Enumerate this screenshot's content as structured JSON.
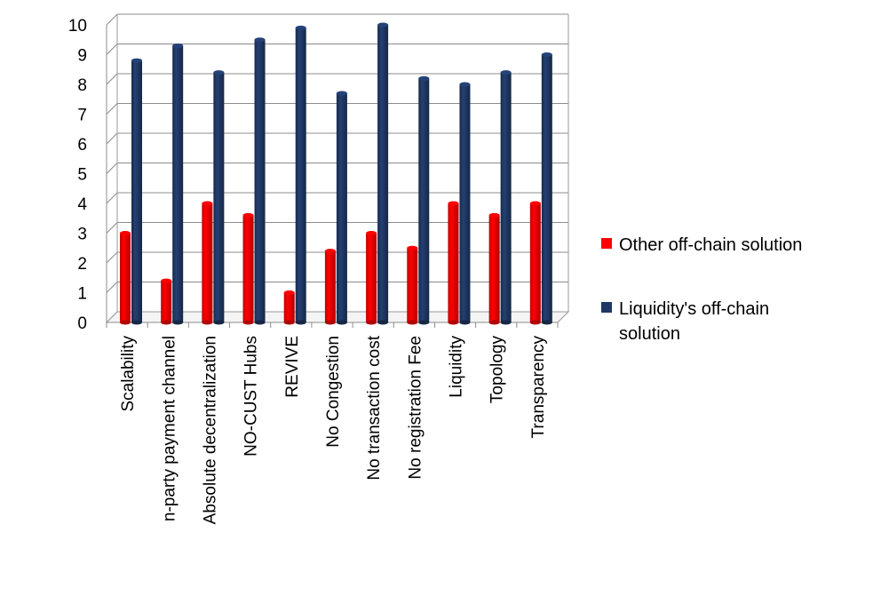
{
  "chart_data": {
    "type": "bar",
    "title": "",
    "xlabel": "",
    "ylabel": "",
    "ylim": [
      0,
      10
    ],
    "yticks": [
      0,
      1,
      2,
      3,
      4,
      5,
      6,
      7,
      8,
      9,
      10
    ],
    "grid": true,
    "legend_position": "right",
    "categories": [
      "Scalability",
      "n-party payment channel",
      "Absolute decentralization",
      "NO-CUST Hubs",
      "REVIVE",
      "No Congestion",
      "No transaction cost",
      "No registration Fee",
      "Liquidity",
      "Topology",
      "Transparency"
    ],
    "series": [
      {
        "name": "Other off-chain solution",
        "color": "#ff0000",
        "values": [
          3,
          1.4,
          4,
          3.6,
          1,
          2.4,
          3,
          2.5,
          4,
          3.6,
          4
        ]
      },
      {
        "name": "Liquidity's off-chain solution",
        "color": "#1f3864",
        "values": [
          8.8,
          9.3,
          8.4,
          9.5,
          9.9,
          7.7,
          10,
          8.2,
          8,
          8.4,
          9
        ]
      }
    ]
  }
}
